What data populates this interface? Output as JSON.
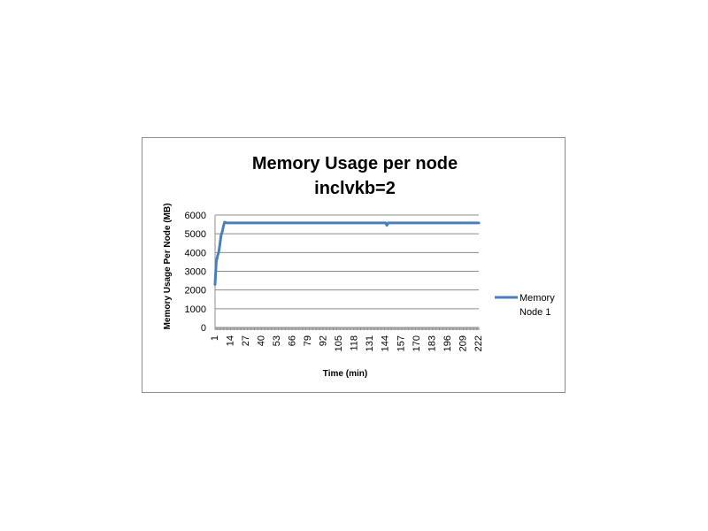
{
  "chart_data": {
    "type": "line",
    "title": [
      "Memory Usage per node",
      "inclvkb=2"
    ],
    "xlabel": "Time (min)",
    "ylabel": "Memory Usage  Per Node (MB)",
    "xlim": [
      1,
      222
    ],
    "ylim": [
      0,
      6000
    ],
    "yticks": [
      0,
      1000,
      2000,
      3000,
      4000,
      5000,
      6000
    ],
    "xtick_labels": [
      "1",
      "14",
      "27",
      "40",
      "53",
      "66",
      "79",
      "92",
      "105",
      "118",
      "131",
      "144",
      "157",
      "170",
      "183",
      "196",
      "209",
      "222"
    ],
    "grid": true,
    "legend_position": "right",
    "series": [
      {
        "name": [
          "Memory",
          "Node 1"
        ],
        "color": "#4a7ebb",
        "points": [
          [
            1,
            2300
          ],
          [
            2,
            3500
          ],
          [
            3,
            3800
          ],
          [
            4,
            4000
          ],
          [
            5,
            4400
          ],
          [
            6,
            4900
          ],
          [
            7,
            5100
          ],
          [
            8,
            5400
          ],
          [
            9,
            5620
          ],
          [
            10,
            5600
          ],
          [
            11,
            5580
          ],
          [
            40,
            5580
          ],
          [
            80,
            5580
          ],
          [
            120,
            5580
          ],
          [
            144,
            5580
          ],
          [
            145,
            5450
          ],
          [
            146,
            5580
          ],
          [
            180,
            5580
          ],
          [
            222,
            5580
          ]
        ]
      }
    ]
  }
}
